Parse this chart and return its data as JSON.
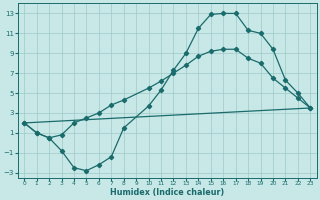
{
  "xlabel": "Humidex (Indice chaleur)",
  "bg_color": "#c8e8e8",
  "grid_color": "#a0c8c8",
  "line_color": "#1a6b6b",
  "line1_x": [
    0,
    1,
    2,
    3,
    4,
    5,
    6,
    7,
    8,
    10,
    11,
    12,
    13,
    14,
    15,
    16,
    17,
    18,
    19,
    20,
    21,
    22,
    23
  ],
  "line1_y": [
    2.0,
    1.0,
    0.5,
    -0.8,
    -2.5,
    -2.8,
    -2.2,
    -1.4,
    1.5,
    3.7,
    5.3,
    7.3,
    9.0,
    11.5,
    12.9,
    13.0,
    13.0,
    11.3,
    11.0,
    9.4,
    6.3,
    5.0,
    3.5
  ],
  "line2_x": [
    0,
    1,
    2,
    3,
    4,
    5,
    6,
    7,
    8,
    10,
    11,
    12,
    13,
    14,
    15,
    16,
    17,
    18,
    19,
    20,
    21,
    22,
    23
  ],
  "line2_y": [
    2.0,
    1.0,
    0.5,
    0.8,
    2.0,
    2.5,
    3.0,
    3.8,
    4.3,
    5.5,
    6.2,
    7.0,
    7.8,
    8.7,
    9.2,
    9.4,
    9.4,
    8.5,
    8.0,
    6.5,
    5.5,
    4.5,
    3.5
  ],
  "line3_x": [
    0,
    23
  ],
  "line3_y": [
    2.0,
    3.5
  ],
  "xlim": [
    -0.5,
    23.5
  ],
  "ylim": [
    -3.5,
    14.0
  ],
  "yticks": [
    -3,
    -1,
    1,
    3,
    5,
    7,
    9,
    11,
    13
  ],
  "xticks": [
    0,
    1,
    2,
    3,
    4,
    5,
    6,
    7,
    8,
    9,
    10,
    11,
    12,
    13,
    14,
    15,
    16,
    17,
    18,
    19,
    20,
    21,
    22,
    23
  ],
  "markersize": 2.2,
  "linewidth": 0.9
}
